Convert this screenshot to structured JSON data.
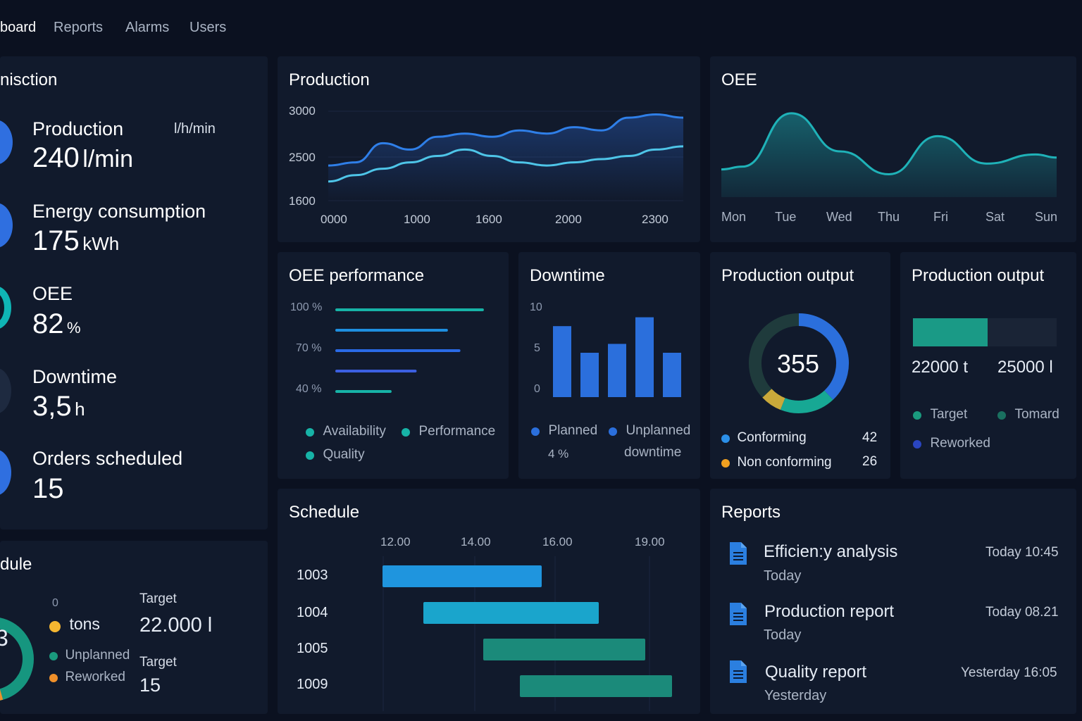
{
  "nav": {
    "items": [
      {
        "label": "board",
        "active": true
      },
      {
        "label": "Reports",
        "active": false
      },
      {
        "label": "Alarms",
        "active": false
      },
      {
        "label": "Users",
        "active": false
      }
    ]
  },
  "summary": {
    "title": "nisction",
    "kpis": [
      {
        "label": "Production",
        "unit_note": "l/h/min",
        "value": "240",
        "unit": "l/min",
        "color": "#2f6fe0"
      },
      {
        "label": "Energy consumption",
        "value": "175",
        "unit": "kWh",
        "color": "#2f6fe0"
      },
      {
        "label": "OEE",
        "value": "82",
        "unit": "%",
        "color": "#0fb5b5"
      },
      {
        "label": "Downtime",
        "value": "3,5",
        "unit": "h",
        "color": "#1e2a40"
      },
      {
        "label": "Orders scheduled",
        "value": "15",
        "unit": "",
        "color": "#2f6fe0"
      }
    ]
  },
  "schedule_left": {
    "title": "dule",
    "zero_label": "0",
    "legend": [
      {
        "label": "tons",
        "color": "#f5b731"
      },
      {
        "label": "Unplanned",
        "color": "#1a9a7e"
      },
      {
        "label": "Reworked",
        "color": "#f0902a"
      }
    ],
    "targets": [
      {
        "label": "Target",
        "value": "22.000 l"
      },
      {
        "label": "Target",
        "value": "15"
      }
    ],
    "donut_label": "3"
  },
  "production_chart": {
    "title": "Production",
    "colors": {
      "series1": "#2f7fe8",
      "series2": "#4ec5e8"
    },
    "chart_data": {
      "type": "line",
      "x_tick_labels": [
        "0000",
        "1000",
        "1600",
        "2000",
        "2300"
      ],
      "y_tick_labels": [
        "3000",
        "2500",
        "1600"
      ],
      "series": [
        {
          "values": [
            2150,
            2200,
            2500,
            2400,
            2600,
            2650,
            2600,
            2700,
            2650,
            2750,
            2700,
            2900,
            2950,
            2900
          ]
        },
        {
          "values": [
            1900,
            2000,
            2100,
            2200,
            2300,
            2400,
            2300,
            2200,
            2150,
            2200,
            2250,
            2300,
            2400,
            2450
          ]
        }
      ]
    }
  },
  "oee_chart": {
    "title": "OEE",
    "color": "#1fb2b8",
    "chart_data": {
      "type": "area",
      "categories": [
        "Mon",
        "Tue",
        "Wed",
        "Thu",
        "Fri",
        "Sat",
        "Sun"
      ],
      "values": [
        60,
        95,
        70,
        55,
        80,
        62,
        68
      ]
    }
  },
  "oee_performance": {
    "title": "OEE performance",
    "y_labels": [
      "100 %",
      "70 %",
      "40 %"
    ],
    "bars": [
      {
        "value": 95,
        "color": "#17b3a7"
      },
      {
        "value": 72,
        "color": "#1e8fe0"
      },
      {
        "value": 80,
        "color": "#2a6ae6"
      },
      {
        "value": 52,
        "color": "#3c5fe0"
      },
      {
        "value": 36,
        "color": "#17b3a7"
      }
    ],
    "legend": [
      {
        "label": "Availability",
        "color": "#17b3a7"
      },
      {
        "label": "Performance",
        "color": "#17b3a7"
      },
      {
        "label": "Quality",
        "color": "#17b3a7"
      }
    ]
  },
  "downtime": {
    "title": "Downtime",
    "chart_data": {
      "type": "bar",
      "y_tick_labels": [
        "10",
        "5",
        "0"
      ],
      "ylim": [
        0,
        10
      ],
      "values": [
        8,
        5,
        6,
        9,
        5
      ]
    },
    "bar_color": "#2b6fdc",
    "legend": [
      {
        "label": "Planned",
        "sub": "4 %",
        "color": "#2b6fdc"
      },
      {
        "label": "Unplanned",
        "sub": "downtime",
        "color": "#2b6fdc"
      }
    ]
  },
  "production_output_donut": {
    "title": "Production output",
    "center_value": "355",
    "segments": [
      {
        "value": 38,
        "color": "#2b6fdc"
      },
      {
        "value": 18,
        "color": "#17a894"
      },
      {
        "value": 7,
        "color": "#c9a93a"
      },
      {
        "value": 37,
        "color": "#1f3b3c"
      }
    ],
    "rows": [
      {
        "label": "Conforming",
        "value": "42",
        "color": "#2b8fe8"
      },
      {
        "label": "Non conforming",
        "value": "26",
        "color": "#f0a020"
      }
    ]
  },
  "production_output_bar": {
    "title": "Production output",
    "fill_fraction": 0.52,
    "fill_color": "#1a9a86",
    "values": [
      "22000 t",
      "25000 l"
    ],
    "legend": [
      {
        "label": "Target",
        "color": "#1a9a7e"
      },
      {
        "label": "Tomard",
        "color": "#1a7060"
      },
      {
        "label": "Reworked",
        "color": "#2a45c0"
      }
    ]
  },
  "schedule": {
    "title": "Schedule",
    "time_labels": [
      "12.00",
      "14.00",
      "16.00",
      "19.00"
    ],
    "rows": [
      {
        "label": "1003",
        "color": "#1f95de"
      },
      {
        "label": "1004",
        "color": "#1aa5cc"
      },
      {
        "label": "1005",
        "color": "#1b8a7a"
      },
      {
        "label": "1009",
        "color": "#1b8a7a"
      }
    ]
  },
  "reports": {
    "title": "Reports",
    "items": [
      {
        "title": "Efficien:y analysis",
        "sub": "Today",
        "time": "Today 10:45"
      },
      {
        "title": "Production report",
        "sub": "Today",
        "time": "Today 08.21"
      },
      {
        "title": "Quality report",
        "sub": "Yesterday",
        "time": "Yesterday  16:05"
      }
    ]
  }
}
